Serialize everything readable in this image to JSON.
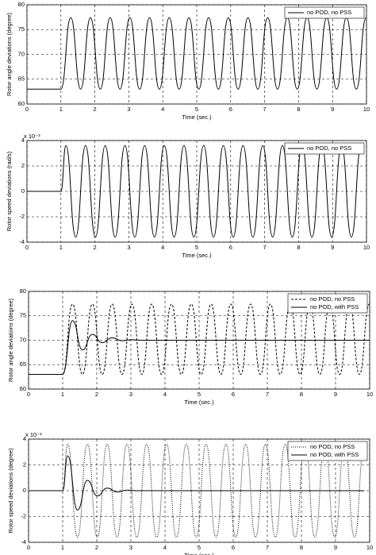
{
  "chart_data": [
    {
      "type": "line",
      "x_label": "Time (sec.)",
      "y_label": "Rotor angle deviations (degree)",
      "xlim": [
        0,
        10
      ],
      "xticks": [
        0,
        1,
        2,
        3,
        4,
        5,
        6,
        7,
        8,
        9,
        10
      ],
      "ylim": [
        60,
        80
      ],
      "yticks": [
        60,
        65,
        70,
        75,
        80
      ],
      "grid": true,
      "legend": "upper right",
      "x": [
        0,
        1,
        1.29,
        1.58,
        1.87,
        2.16,
        2.45,
        2.74,
        3.03,
        3.32,
        3.61,
        3.9,
        4.19,
        4.48,
        4.77,
        5.06,
        5.35,
        5.64,
        5.93,
        6.22,
        6.51,
        6.8,
        7.09,
        7.38,
        7.67,
        7.96,
        8.25,
        8.54,
        8.83,
        9.12,
        9.41,
        9.7,
        9.99
      ],
      "series": [
        {
          "name": "no POD, no PSS",
          "color": "#000000",
          "line_style": "solid",
          "values": [
            63,
            63,
            77.4,
            63,
            77.4,
            63,
            77.4,
            63,
            77.4,
            63,
            77.4,
            63,
            77.4,
            63,
            77.4,
            63,
            77.4,
            63,
            77.4,
            63,
            77.4,
            63,
            77.4,
            63,
            77.4,
            63,
            77.4,
            63,
            77.4,
            63,
            77.4,
            63,
            77.4
          ]
        }
      ]
    },
    {
      "type": "line",
      "x_label": "Time (sec.)",
      "y_label": "Rotor speed deviations (rad/s)",
      "y_exponent": "x 10⁻³",
      "xlim": [
        0,
        10
      ],
      "xticks": [
        0,
        1,
        2,
        3,
        4,
        5,
        6,
        7,
        8,
        9,
        10
      ],
      "ylim": [
        -4,
        4
      ],
      "yticks": [
        -4,
        -2,
        0,
        2,
        4
      ],
      "grid": true,
      "legend": "upper right",
      "x": [
        0,
        1,
        1.145,
        1.435,
        1.725,
        2.015,
        2.305,
        2.595,
        2.885,
        3.175,
        3.465,
        3.755,
        4.045,
        4.335,
        4.625,
        4.915,
        5.205,
        5.495,
        5.785,
        6.075,
        6.365,
        6.655,
        6.945,
        7.235,
        7.525,
        7.815,
        8.105,
        8.395,
        8.685,
        8.975,
        9.265,
        9.555,
        9.845
      ],
      "series": [
        {
          "name": "no POD, no PSS",
          "color": "#000000",
          "line_style": "solid",
          "values": [
            0,
            0,
            3.6,
            -3.6,
            3.6,
            -3.6,
            3.6,
            -3.6,
            3.6,
            -3.6,
            3.6,
            -3.6,
            3.6,
            -3.6,
            3.6,
            -3.6,
            3.6,
            -3.6,
            3.6,
            -3.6,
            3.6,
            -3.6,
            3.6,
            -3.6,
            3.6,
            -3.6,
            3.6,
            -3.6,
            3.6,
            -3.6,
            3.6,
            -3.6,
            3.6
          ]
        }
      ]
    },
    {
      "type": "line",
      "x_label": "Time (sec.)",
      "y_label": "Rotor angle deviations (degree)",
      "xlim": [
        0,
        10
      ],
      "xticks": [
        0,
        1,
        2,
        3,
        4,
        5,
        6,
        7,
        8,
        9,
        10
      ],
      "ylim": [
        60,
        80
      ],
      "yticks": [
        60,
        65,
        70,
        75,
        80
      ],
      "grid": true,
      "legend": "upper right",
      "x": [
        0,
        1,
        1.29,
        1.58,
        1.87,
        2.16,
        2.45,
        2.74,
        3.03,
        3.32,
        3.61,
        3.9,
        4.19,
        4.48,
        4.77,
        5.06,
        5.35,
        5.64,
        5.93,
        6.22,
        6.51,
        6.8,
        7.09,
        7.38,
        7.67,
        7.96,
        8.25,
        8.54,
        8.83,
        9.12,
        9.41,
        9.7,
        9.99
      ],
      "series": [
        {
          "name": "no POD, no PSS",
          "color": "#000000",
          "line_style": "dashed",
          "values": [
            63,
            63,
            77.4,
            63,
            77.4,
            63,
            77.4,
            63,
            77.4,
            63,
            77.4,
            63,
            77.4,
            63,
            77.4,
            63,
            77.4,
            63,
            77.4,
            63,
            77.4,
            63,
            77.4,
            63,
            77.4,
            63,
            77.4,
            63,
            77.4,
            63,
            77.4,
            63,
            77.4
          ]
        },
        {
          "name": "no POD, with PSS",
          "color": "#000000",
          "line_style": "solid",
          "values": [
            63,
            63,
            74,
            68,
            71.2,
            69.5,
            70.5,
            69.9,
            70.1,
            70,
            70,
            70,
            70,
            70,
            70,
            70,
            70,
            70,
            70,
            70,
            70,
            70,
            70,
            70,
            70,
            70,
            70,
            70,
            70,
            70,
            70,
            70,
            70
          ]
        }
      ]
    },
    {
      "type": "line",
      "x_label": "Time (sec.)",
      "y_label": "Rotor speed deviations (degree)",
      "y_exponent": "x 10⁻³",
      "xlim": [
        0,
        10
      ],
      "xticks": [
        0,
        1,
        2,
        3,
        4,
        5,
        6,
        7,
        8,
        9,
        10
      ],
      "ylim": [
        -4,
        4
      ],
      "yticks": [
        -4,
        -2,
        0,
        2,
        4
      ],
      "grid": true,
      "legend": "upper right",
      "x": [
        0,
        1,
        1.145,
        1.435,
        1.725,
        2.015,
        2.305,
        2.595,
        2.885,
        3.175,
        3.465,
        3.755,
        4.045,
        4.335,
        4.625,
        4.915,
        5.205,
        5.495,
        5.785,
        6.075,
        6.365,
        6.655,
        6.945,
        7.235,
        7.525,
        7.815,
        8.105,
        8.395,
        8.685,
        8.975,
        9.265,
        9.555,
        9.845
      ],
      "series": [
        {
          "name": "no POD, no PSS",
          "color": "#000000",
          "line_style": "dotted",
          "values": [
            0,
            0,
            3.6,
            -3.6,
            3.6,
            -3.6,
            3.6,
            -3.6,
            3.6,
            -3.6,
            3.6,
            -3.6,
            3.6,
            -3.6,
            3.6,
            -3.6,
            3.6,
            -3.6,
            3.6,
            -3.6,
            3.6,
            -3.6,
            3.6,
            -3.6,
            3.6,
            -3.6,
            3.6,
            -3.6,
            3.6,
            -3.6,
            3.6,
            -3.6,
            3.6
          ]
        },
        {
          "name": "no POD, with PSS",
          "color": "#000000",
          "line_style": "solid",
          "values": [
            0,
            0,
            2.7,
            -1.5,
            0.8,
            -0.4,
            0.2,
            -0.1,
            0.05,
            0,
            0,
            0,
            0,
            0,
            0,
            0,
            0,
            0,
            0,
            0,
            0,
            0,
            0,
            0,
            0,
            0,
            0,
            0,
            0,
            0,
            0,
            0,
            0
          ]
        }
      ]
    }
  ]
}
